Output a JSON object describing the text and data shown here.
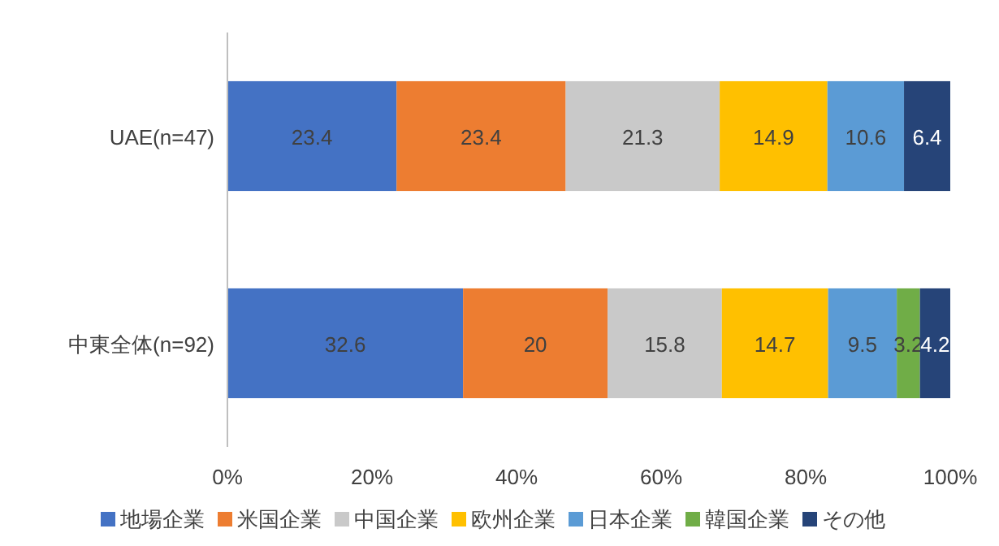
{
  "chart_data": {
    "type": "bar",
    "orientation": "horizontal",
    "stacked": true,
    "categories": [
      "UAE(n=47)",
      "中東全体(n=92)"
    ],
    "series": [
      {
        "name": "地場企業",
        "color": "#4472c4",
        "values": [
          23.4,
          32.6
        ]
      },
      {
        "name": "米国企業",
        "color": "#ed7d31",
        "values": [
          23.4,
          20
        ]
      },
      {
        "name": "中国企業",
        "color": "#c9c9c9",
        "values": [
          21.3,
          15.8
        ]
      },
      {
        "name": "欧州企業",
        "color": "#ffc000",
        "values": [
          14.9,
          14.7
        ]
      },
      {
        "name": "日本企業",
        "color": "#5b9bd5",
        "values": [
          10.6,
          9.5
        ]
      },
      {
        "name": "韓国企業",
        "color": "#70ad47",
        "values": [
          0,
          3.2
        ],
        "value_labels": [
          null,
          "3.2"
        ]
      },
      {
        "name": "その他",
        "color": "#264478",
        "values": [
          6.4,
          4.2
        ]
      }
    ],
    "xlim": [
      0,
      100
    ],
    "xticks": [
      {
        "value": 0,
        "label": "0%"
      },
      {
        "value": 20,
        "label": "20%"
      },
      {
        "value": 40,
        "label": "40%"
      },
      {
        "value": 60,
        "label": "60%"
      },
      {
        "value": 80,
        "label": "80%"
      },
      {
        "value": 100,
        "label": "100%"
      }
    ],
    "data_labels": true,
    "legend": "bottom",
    "grid": false
  }
}
